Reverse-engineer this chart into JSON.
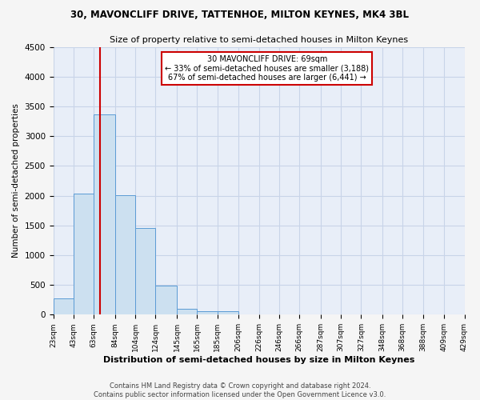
{
  "title_line1": "30, MAVONCLIFF DRIVE, TATTENHOE, MILTON KEYNES, MK4 3BL",
  "title_line2": "Size of property relative to semi-detached houses in Milton Keynes",
  "xlabel": "Distribution of semi-detached houses by size in Milton Keynes",
  "ylabel": "Number of semi-detached properties",
  "footnote": "Contains HM Land Registry data © Crown copyright and database right 2024.\nContains public sector information licensed under the Open Government Licence v3.0.",
  "bar_edges": [
    23,
    43,
    63,
    84,
    104,
    124,
    145,
    165,
    185,
    206,
    226,
    246,
    266,
    287,
    307,
    327,
    348,
    368,
    388,
    409,
    429
  ],
  "bar_heights": [
    270,
    2030,
    3370,
    2010,
    1460,
    490,
    105,
    65,
    55,
    0,
    0,
    0,
    0,
    0,
    0,
    0,
    0,
    0,
    0,
    0
  ],
  "bar_color": "#cce0f0",
  "bar_edgecolor": "#5b9bd5",
  "property_line_x": 69,
  "annotation_title": "30 MAVONCLIFF DRIVE: 69sqm",
  "annotation_line1": "← 33% of semi-detached houses are smaller (3,188)",
  "annotation_line2": "67% of semi-detached houses are larger (6,441) →",
  "annotation_box_color": "#ffffff",
  "annotation_box_edgecolor": "#cc0000",
  "vline_color": "#cc0000",
  "ylim": [
    0,
    4500
  ],
  "yticks": [
    0,
    500,
    1000,
    1500,
    2000,
    2500,
    3000,
    3500,
    4000,
    4500
  ],
  "xtick_labels": [
    "23sqm",
    "43sqm",
    "63sqm",
    "84sqm",
    "104sqm",
    "124sqm",
    "145sqm",
    "165sqm",
    "185sqm",
    "206sqm",
    "226sqm",
    "246sqm",
    "266sqm",
    "287sqm",
    "307sqm",
    "327sqm",
    "348sqm",
    "368sqm",
    "388sqm",
    "409sqm",
    "429sqm"
  ],
  "grid_color": "#c8d4e8",
  "bg_color": "#e8eef8",
  "fig_bg_color": "#f5f5f5"
}
